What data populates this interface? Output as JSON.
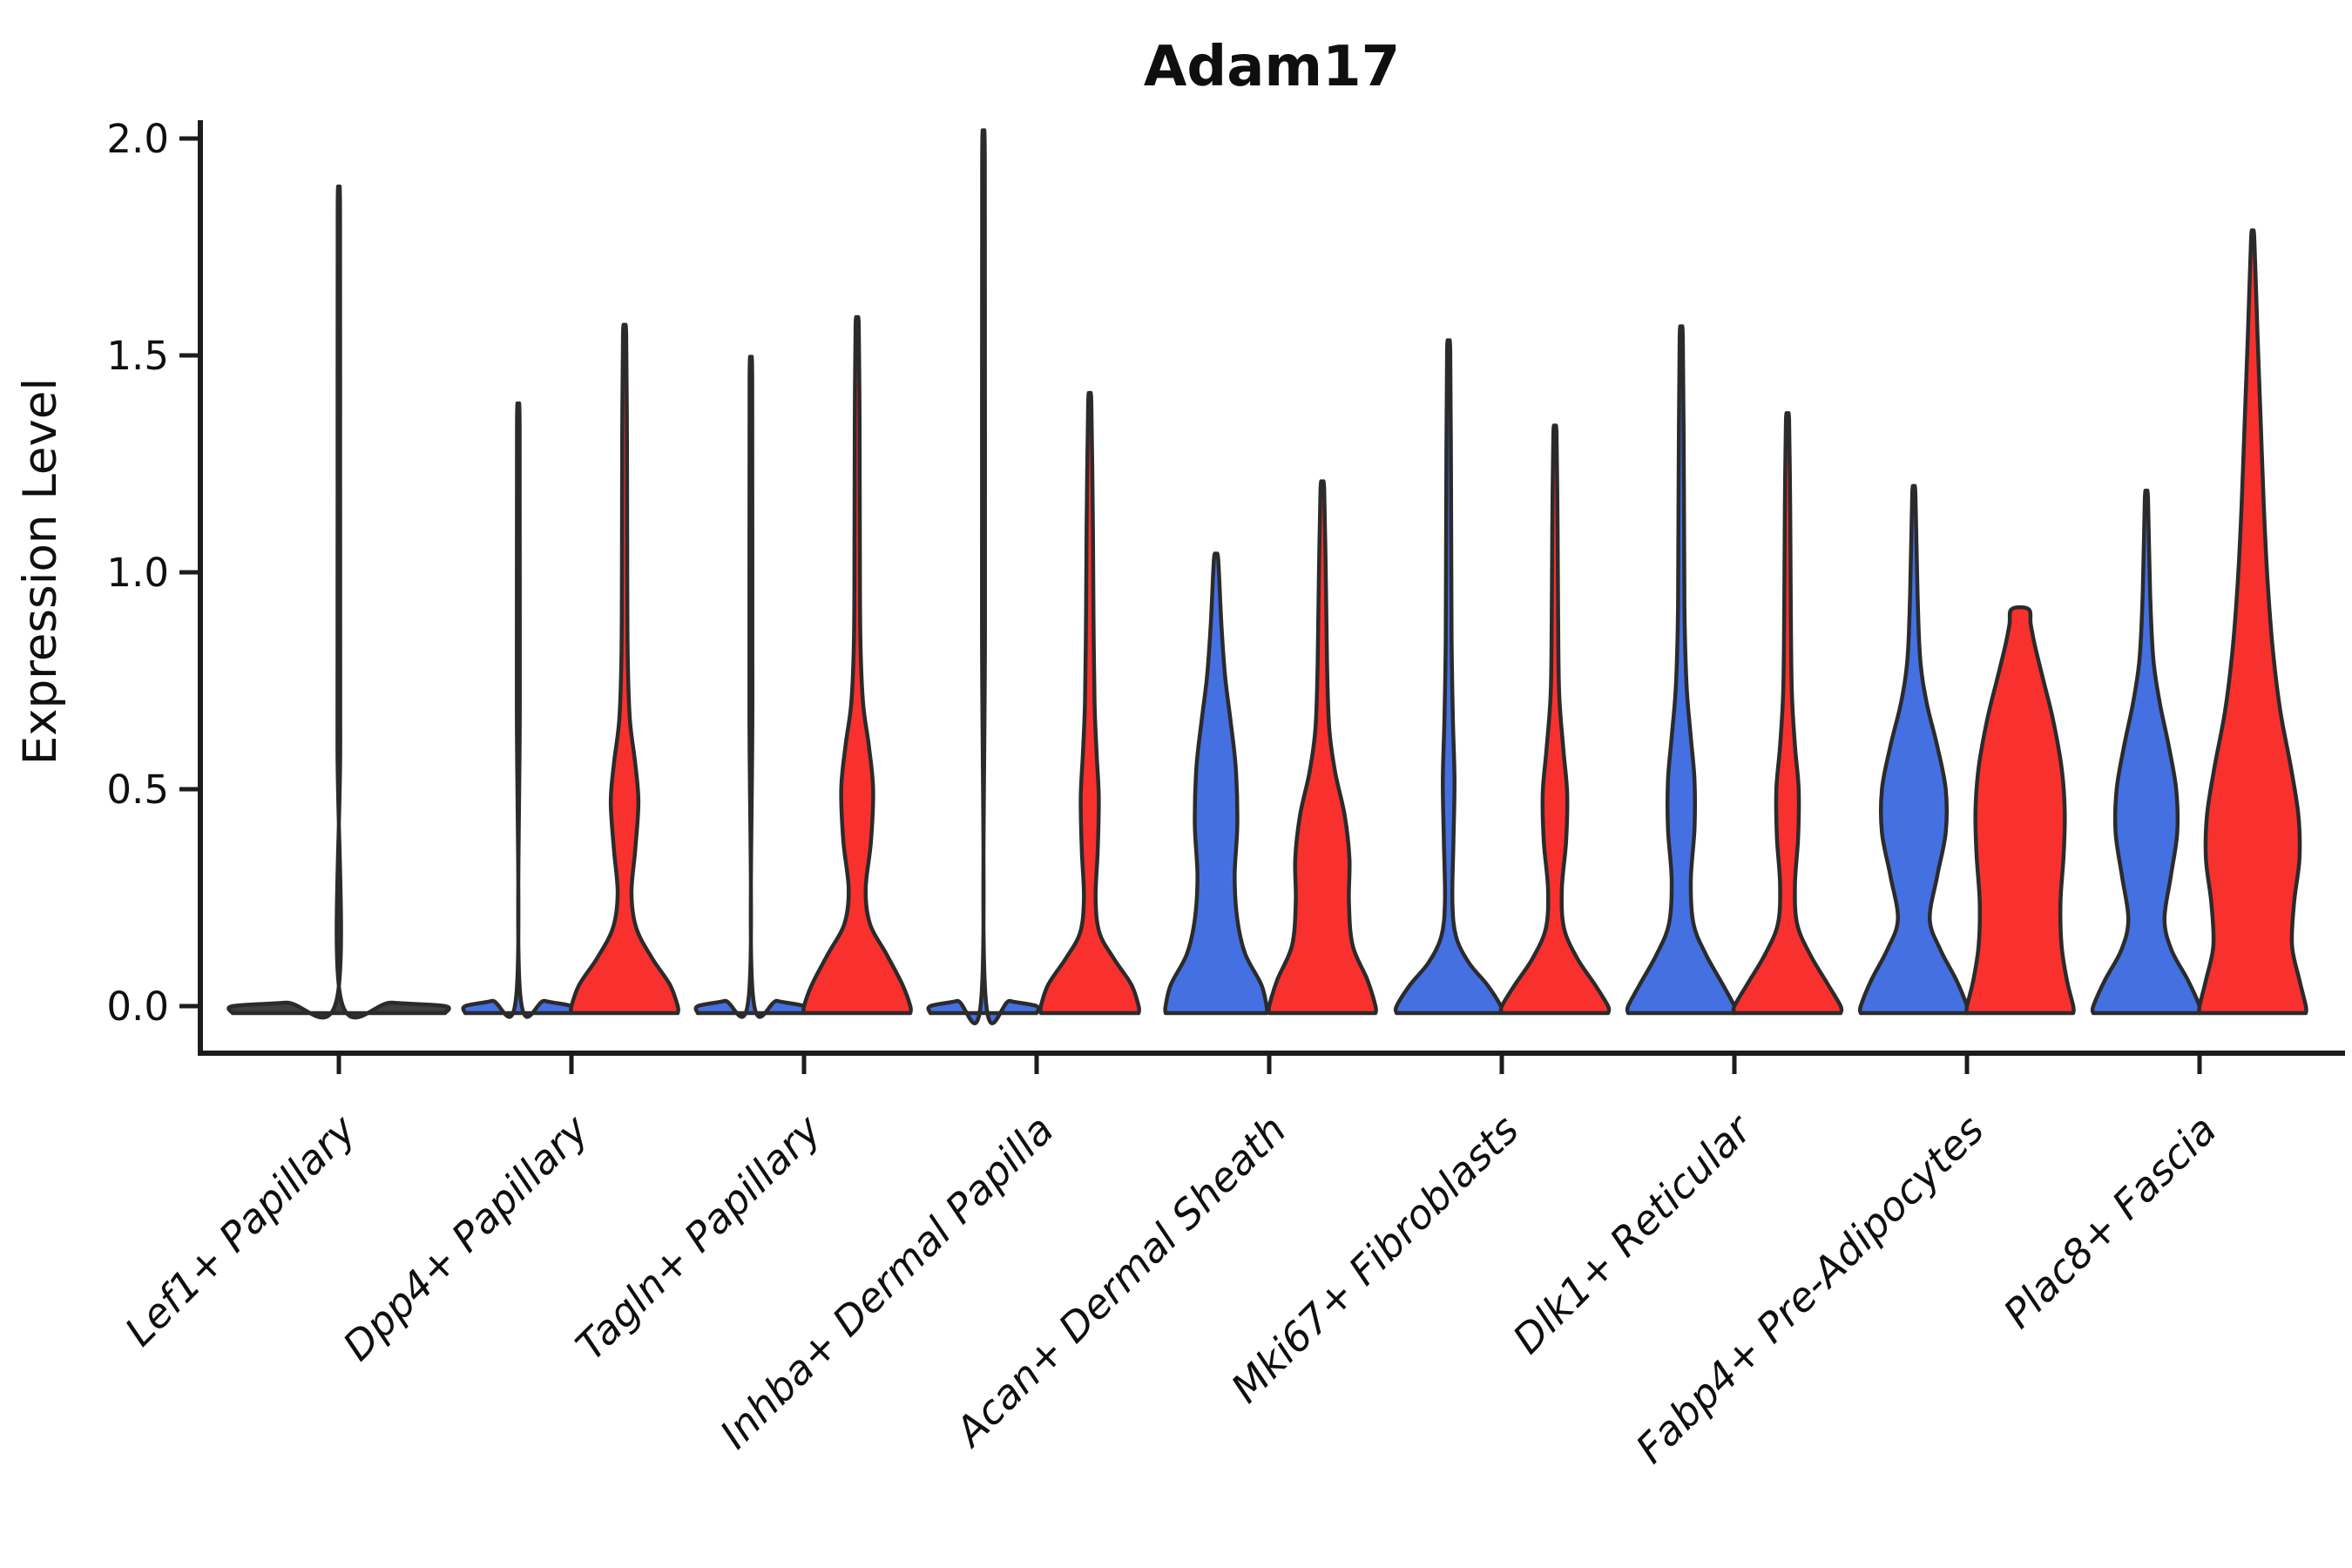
{
  "title": "Adam17",
  "chart_data": {
    "type": "violin",
    "title": "Adam17",
    "xlabel": "",
    "ylabel": "Expression Level",
    "ylim": [
      0,
      2.0
    ],
    "y_ticks": [
      "0.0",
      "0.5",
      "1.0",
      "1.5",
      "2.0"
    ],
    "y_tick_values": [
      0,
      0.5,
      1.0,
      1.5,
      2.0
    ],
    "grid": false,
    "legend": "none",
    "categories": [
      "Lef1+ Papillary",
      "Dpp4+ Papillary",
      "Tagln+ Papillary",
      "Inhba+ Dermal Papilla",
      "Acan+ Dermal Sheath",
      "Mki67+ Fibroblasts",
      "Dlk1+ Reticular",
      "Fabp4+ Pre-Adipocytes",
      "Plac8+ Fascia"
    ],
    "groups": [
      {
        "key": "blue",
        "color": "#4470E2"
      },
      {
        "key": "red",
        "color": "#F8312E"
      }
    ],
    "series": [
      {
        "name": "blue",
        "max_expression": [
          null,
          1.34,
          1.44,
          1.94,
          1.03,
          1.51,
          1.54,
          1.18,
          1.17
        ]
      },
      {
        "name": "red",
        "max_expression": [
          null,
          1.55,
          1.57,
          1.39,
          1.19,
          1.32,
          1.35,
          0.92,
          1.77
        ]
      },
      {
        "name": "single_combined",
        "max_expression": [
          1.84,
          null,
          null,
          null,
          null,
          null,
          null,
          null,
          null
        ]
      }
    ],
    "violins": [
      {
        "category": "Lef1+ Papillary",
        "cat_index": 0,
        "pos": "center",
        "width": 2,
        "color": "#3f3f3f",
        "max": 1.84,
        "tip": "point",
        "profile": [
          [
            0,
            1
          ],
          [
            0.008,
            0.5
          ],
          [
            0.02,
            0.016
          ],
          [
            0.6,
            0.013
          ],
          [
            1.2,
            0.012
          ],
          [
            1.84,
            0.011
          ]
        ]
      },
      {
        "category": "Dpp4+ Papillary",
        "cat_index": 1,
        "pos": "left",
        "width": 1,
        "color": "#4470E2",
        "max": 1.34,
        "tip": "point",
        "profile": [
          [
            0,
            1
          ],
          [
            0.012,
            0.5
          ],
          [
            0.03,
            0.034
          ],
          [
            0.7,
            0.028
          ],
          [
            1.34,
            0.025
          ]
        ]
      },
      {
        "category": "Dpp4+ Papillary",
        "cat_index": 1,
        "pos": "right",
        "width": 1,
        "color": "#F8312E",
        "max": 1.55,
        "tip": "point",
        "profile": [
          [
            0,
            1
          ],
          [
            0.05,
            0.85
          ],
          [
            0.11,
            0.52
          ],
          [
            0.18,
            0.22
          ],
          [
            0.26,
            0.13
          ],
          [
            0.36,
            0.2
          ],
          [
            0.47,
            0.26
          ],
          [
            0.56,
            0.2
          ],
          [
            0.66,
            0.1
          ],
          [
            0.8,
            0.06
          ],
          [
            1.0,
            0.05
          ],
          [
            1.3,
            0.045
          ],
          [
            1.55,
            0.03
          ]
        ]
      },
      {
        "category": "Tagln+ Papillary",
        "cat_index": 2,
        "pos": "left",
        "width": 1,
        "color": "#4470E2",
        "max": 1.44,
        "tip": "point",
        "profile": [
          [
            0,
            1
          ],
          [
            0.012,
            0.5
          ],
          [
            0.03,
            0.034
          ],
          [
            0.7,
            0.028
          ],
          [
            1.44,
            0.025
          ]
        ]
      },
      {
        "category": "Tagln+ Papillary",
        "cat_index": 2,
        "pos": "right",
        "width": 1,
        "color": "#F8312E",
        "max": 1.57,
        "tip": "point",
        "profile": [
          [
            0,
            1
          ],
          [
            0.05,
            0.85
          ],
          [
            0.12,
            0.55
          ],
          [
            0.19,
            0.24
          ],
          [
            0.27,
            0.16
          ],
          [
            0.38,
            0.26
          ],
          [
            0.5,
            0.3
          ],
          [
            0.6,
            0.22
          ],
          [
            0.7,
            0.11
          ],
          [
            0.85,
            0.06
          ],
          [
            1.1,
            0.05
          ],
          [
            1.35,
            0.045
          ],
          [
            1.57,
            0.03
          ]
        ]
      },
      {
        "category": "Inhba+ Dermal Papilla",
        "cat_index": 3,
        "pos": "left",
        "width": 1,
        "color": "#4470E2",
        "max": 1.94,
        "tip": "point",
        "profile": [
          [
            0,
            1
          ],
          [
            0.012,
            0.5
          ],
          [
            0.03,
            0.034
          ],
          [
            0.9,
            0.028
          ],
          [
            1.94,
            0.025
          ]
        ]
      },
      {
        "category": "Inhba+ Dermal Papilla",
        "cat_index": 3,
        "pos": "right",
        "width": 1,
        "color": "#F8312E",
        "max": 1.39,
        "tip": "point",
        "profile": [
          [
            0,
            0.92
          ],
          [
            0.05,
            0.78
          ],
          [
            0.11,
            0.45
          ],
          [
            0.17,
            0.18
          ],
          [
            0.25,
            0.11
          ],
          [
            0.36,
            0.15
          ],
          [
            0.48,
            0.17
          ],
          [
            0.58,
            0.13
          ],
          [
            0.7,
            0.09
          ],
          [
            0.9,
            0.07
          ],
          [
            1.1,
            0.06
          ],
          [
            1.39,
            0.03
          ]
        ]
      },
      {
        "category": "Acan+ Dermal Sheath",
        "cat_index": 4,
        "pos": "left",
        "width": 1,
        "color": "#4470E2",
        "max": 1.03,
        "tip": "point",
        "profile": [
          [
            0,
            0.95
          ],
          [
            0.05,
            0.85
          ],
          [
            0.12,
            0.55
          ],
          [
            0.2,
            0.4
          ],
          [
            0.3,
            0.35
          ],
          [
            0.42,
            0.4
          ],
          [
            0.55,
            0.37
          ],
          [
            0.66,
            0.27
          ],
          [
            0.76,
            0.17
          ],
          [
            0.88,
            0.1
          ],
          [
            1.03,
            0.04
          ]
        ]
      },
      {
        "category": "Acan+ Dermal Sheath",
        "cat_index": 4,
        "pos": "right",
        "width": 1,
        "color": "#F8312E",
        "max": 1.19,
        "tip": "point",
        "profile": [
          [
            0,
            1
          ],
          [
            0.06,
            0.85
          ],
          [
            0.14,
            0.57
          ],
          [
            0.24,
            0.5
          ],
          [
            0.34,
            0.51
          ],
          [
            0.44,
            0.42
          ],
          [
            0.54,
            0.24
          ],
          [
            0.64,
            0.13
          ],
          [
            0.78,
            0.09
          ],
          [
            0.95,
            0.07
          ],
          [
            1.19,
            0.035
          ]
        ]
      },
      {
        "category": "Mki67+ Fibroblasts",
        "cat_index": 5,
        "pos": "left",
        "width": 1,
        "color": "#4470E2",
        "max": 1.51,
        "tip": "point",
        "profile": [
          [
            0,
            0.98
          ],
          [
            0.05,
            0.72
          ],
          [
            0.1,
            0.38
          ],
          [
            0.16,
            0.14
          ],
          [
            0.24,
            0.07
          ],
          [
            0.38,
            0.09
          ],
          [
            0.52,
            0.11
          ],
          [
            0.66,
            0.08
          ],
          [
            0.85,
            0.055
          ],
          [
            1.2,
            0.045
          ],
          [
            1.51,
            0.03
          ]
        ]
      },
      {
        "category": "Mki67+ Fibroblasts",
        "cat_index": 5,
        "pos": "right",
        "width": 1,
        "color": "#F8312E",
        "max": 1.32,
        "tip": "point",
        "profile": [
          [
            0,
            1
          ],
          [
            0.05,
            0.75
          ],
          [
            0.11,
            0.42
          ],
          [
            0.18,
            0.17
          ],
          [
            0.27,
            0.13
          ],
          [
            0.38,
            0.21
          ],
          [
            0.49,
            0.23
          ],
          [
            0.59,
            0.16
          ],
          [
            0.72,
            0.08
          ],
          [
            0.9,
            0.06
          ],
          [
            1.1,
            0.05
          ],
          [
            1.32,
            0.03
          ]
        ]
      },
      {
        "category": "Dlk1+ Reticular",
        "cat_index": 6,
        "pos": "left",
        "width": 1,
        "color": "#4470E2",
        "max": 1.54,
        "tip": "point",
        "profile": [
          [
            0,
            1
          ],
          [
            0.05,
            0.78
          ],
          [
            0.12,
            0.46
          ],
          [
            0.19,
            0.23
          ],
          [
            0.29,
            0.18
          ],
          [
            0.41,
            0.25
          ],
          [
            0.52,
            0.25
          ],
          [
            0.62,
            0.18
          ],
          [
            0.74,
            0.1
          ],
          [
            0.92,
            0.06
          ],
          [
            1.2,
            0.05
          ],
          [
            1.54,
            0.03
          ]
        ]
      },
      {
        "category": "Dlk1+ Reticular",
        "cat_index": 6,
        "pos": "right",
        "width": 1,
        "color": "#F8312E",
        "max": 1.35,
        "tip": "point",
        "profile": [
          [
            0,
            1
          ],
          [
            0.05,
            0.76
          ],
          [
            0.12,
            0.42
          ],
          [
            0.19,
            0.18
          ],
          [
            0.28,
            0.14
          ],
          [
            0.39,
            0.2
          ],
          [
            0.5,
            0.21
          ],
          [
            0.6,
            0.14
          ],
          [
            0.73,
            0.08
          ],
          [
            0.95,
            0.06
          ],
          [
            1.15,
            0.05
          ],
          [
            1.35,
            0.03
          ]
        ]
      },
      {
        "category": "Fabp4+ Pre-Adipocytes",
        "cat_index": 7,
        "pos": "left",
        "width": 1,
        "color": "#4470E2",
        "max": 1.18,
        "tip": "point",
        "profile": [
          [
            0,
            1
          ],
          [
            0.06,
            0.8
          ],
          [
            0.13,
            0.5
          ],
          [
            0.2,
            0.3
          ],
          [
            0.3,
            0.44
          ],
          [
            0.4,
            0.6
          ],
          [
            0.5,
            0.6
          ],
          [
            0.6,
            0.44
          ],
          [
            0.7,
            0.24
          ],
          [
            0.8,
            0.12
          ],
          [
            0.95,
            0.07
          ],
          [
            1.18,
            0.03
          ]
        ]
      },
      {
        "category": "Fabp4+ Pre-Adipocytes",
        "cat_index": 7,
        "pos": "right",
        "width": 1,
        "color": "#F8312E",
        "max": 0.92,
        "tip": "flat",
        "profile": [
          [
            0,
            1
          ],
          [
            0.06,
            0.88
          ],
          [
            0.14,
            0.78
          ],
          [
            0.24,
            0.76
          ],
          [
            0.35,
            0.82
          ],
          [
            0.45,
            0.84
          ],
          [
            0.55,
            0.78
          ],
          [
            0.66,
            0.62
          ],
          [
            0.75,
            0.44
          ],
          [
            0.83,
            0.28
          ],
          [
            0.88,
            0.2
          ],
          [
            0.915,
            0.16
          ]
        ]
      },
      {
        "category": "Plac8+ Fascia",
        "cat_index": 8,
        "pos": "left",
        "width": 1,
        "color": "#4470E2",
        "max": 1.17,
        "tip": "point",
        "profile": [
          [
            0,
            1
          ],
          [
            0.06,
            0.78
          ],
          [
            0.13,
            0.47
          ],
          [
            0.2,
            0.34
          ],
          [
            0.3,
            0.46
          ],
          [
            0.4,
            0.58
          ],
          [
            0.5,
            0.56
          ],
          [
            0.6,
            0.42
          ],
          [
            0.7,
            0.25
          ],
          [
            0.8,
            0.13
          ],
          [
            0.95,
            0.07
          ],
          [
            1.17,
            0.03
          ]
        ]
      },
      {
        "category": "Plac8+ Fascia",
        "cat_index": 8,
        "pos": "right",
        "width": 1,
        "color": "#F8312E",
        "max": 1.77,
        "tip": "point",
        "profile": [
          [
            0,
            1
          ],
          [
            0.06,
            0.88
          ],
          [
            0.14,
            0.74
          ],
          [
            0.24,
            0.78
          ],
          [
            0.34,
            0.88
          ],
          [
            0.44,
            0.86
          ],
          [
            0.55,
            0.72
          ],
          [
            0.68,
            0.52
          ],
          [
            0.82,
            0.38
          ],
          [
            0.98,
            0.28
          ],
          [
            1.15,
            0.21
          ],
          [
            1.35,
            0.15
          ],
          [
            1.55,
            0.09
          ],
          [
            1.77,
            0.03
          ]
        ]
      }
    ]
  }
}
